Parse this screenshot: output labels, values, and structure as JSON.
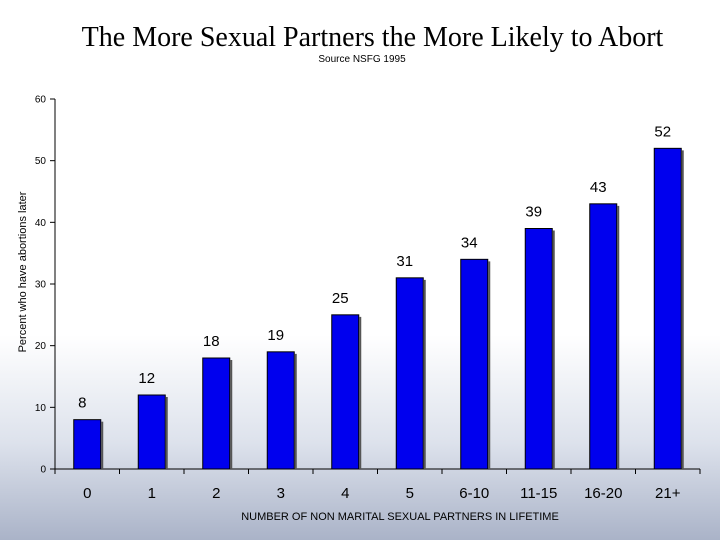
{
  "slide": {
    "title": "The More Sexual Partners the More Likely to Abort",
    "source": "Source NSFG 1995"
  },
  "colors": {
    "bar_fill": "#0000ee",
    "bar_stroke": "#000000",
    "axis": "#000000"
  },
  "chart_data": {
    "type": "bar",
    "categories": [
      "0",
      "1",
      "2",
      "3",
      "4",
      "5",
      "6-10",
      "11-15",
      "16-20",
      "21+"
    ],
    "values": [
      8,
      12,
      18,
      19,
      25,
      31,
      34,
      39,
      43,
      52
    ],
    "data_labels": [
      "8",
      "12",
      "18",
      "19",
      "25",
      "31",
      "34",
      "39",
      "43",
      "52"
    ],
    "xlabel": "NUMBER OF NON MARITAL SEXUAL PARTNERS IN LIFETIME",
    "ylabel": "Percent who have abortions later",
    "ylim": [
      0,
      60
    ],
    "yticks": [
      0,
      10,
      20,
      30,
      40,
      50,
      60
    ],
    "grid": false,
    "legend": "none"
  }
}
